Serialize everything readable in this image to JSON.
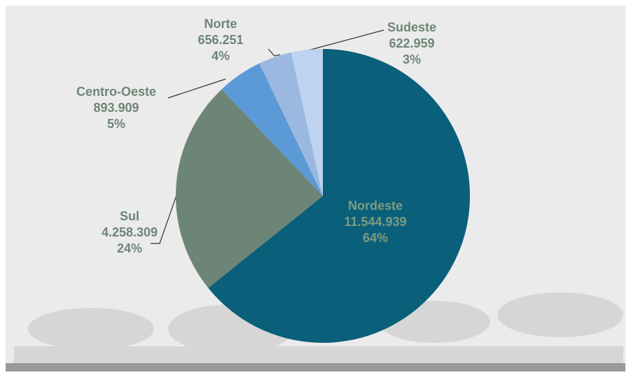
{
  "chart_data": {
    "type": "pie",
    "categories": [
      "Nordeste",
      "Sul",
      "Centro-Oeste",
      "Norte",
      "Sudeste"
    ],
    "values": [
      11544939,
      4258309,
      893909,
      656251,
      622959
    ],
    "value_labels": [
      "11.544.939",
      "4.258.309",
      "893.909",
      "656.251",
      "622.959"
    ],
    "percents": [
      64,
      24,
      5,
      4,
      3
    ],
    "percent_labels": [
      "64%",
      "24%",
      "5%",
      "4%",
      "3%"
    ],
    "colors": [
      "#0a5f7a",
      "#6d8577",
      "#5b9ad6",
      "#9ab8e0",
      "#bdd3ef"
    ],
    "start": "top",
    "direction": "clockwise"
  }
}
